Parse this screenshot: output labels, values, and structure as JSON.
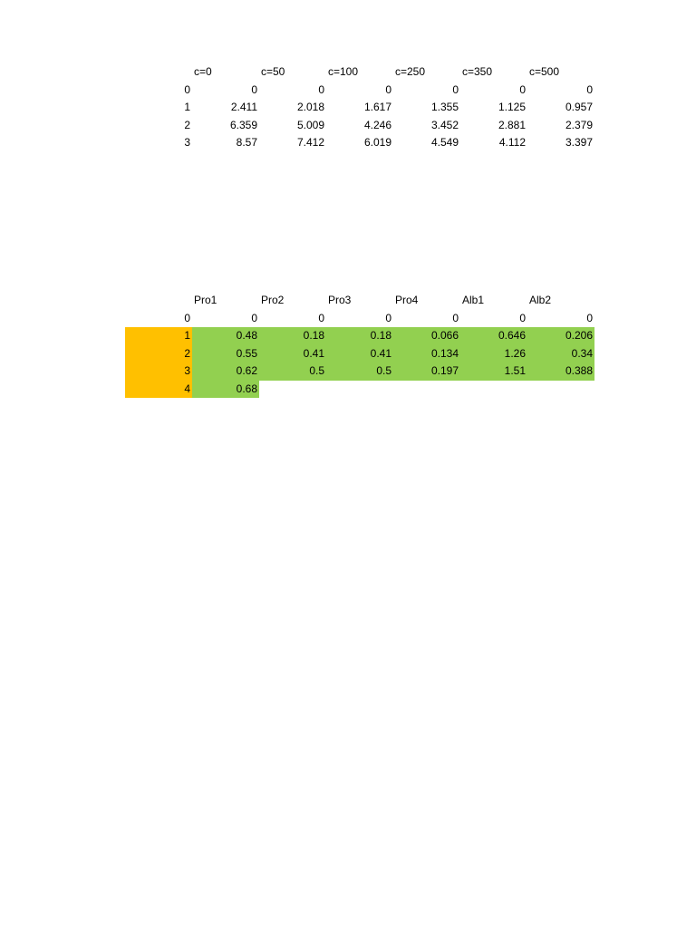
{
  "table1": {
    "headers": [
      "c=0",
      "c=50",
      "c=100",
      "c=250",
      "c=350",
      "c=500"
    ],
    "rows": [
      [
        "0",
        "0",
        "0",
        "0",
        "0",
        "0",
        "0"
      ],
      [
        "1",
        "2.411",
        "2.018",
        "1.617",
        "1.355",
        "1.125",
        "0.957"
      ],
      [
        "2",
        "6.359",
        "5.009",
        "4.246",
        "3.452",
        "2.881",
        "2.379"
      ],
      [
        "3",
        "8.57",
        "7.412",
        "6.019",
        "4.549",
        "4.112",
        "3.397"
      ]
    ]
  },
  "table2": {
    "headers": [
      "Pro1",
      "Pro2",
      "Pro3",
      "Pro4",
      "Alb1",
      "Alb2"
    ],
    "rows": [
      [
        "0",
        "0",
        "0",
        "0",
        "0",
        "0",
        "0"
      ],
      [
        "1",
        "0.48",
        "0.18",
        "0.18",
        "0.066",
        "0.646",
        "0.206"
      ],
      [
        "2",
        "0.55",
        "0.41",
        "0.41",
        "0.134",
        "1.26",
        "0.34"
      ],
      [
        "3",
        "0.62",
        "0.5",
        "0.5",
        "0.197",
        "1.51",
        "0.388"
      ],
      [
        "4",
        "0.68",
        "",
        "",
        "",
        "",
        ""
      ]
    ]
  },
  "colors": {
    "index_fill": "#ffc000",
    "data_fill": "#92d050"
  }
}
